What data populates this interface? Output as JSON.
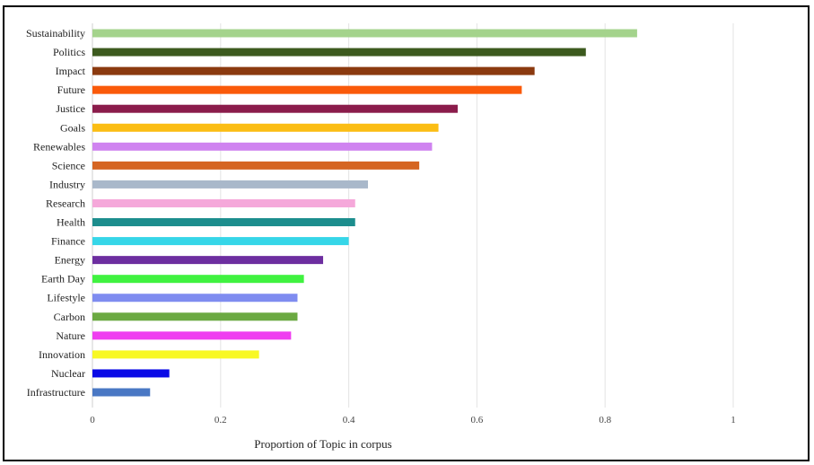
{
  "chart_data": {
    "type": "bar",
    "orientation": "horizontal",
    "title": "",
    "xlabel": "Proportion of Topic in corpus",
    "ylabel": "",
    "xlim": [
      0,
      1
    ],
    "xticks": [
      0,
      0.2,
      0.4,
      0.6,
      0.8,
      1
    ],
    "xtick_labels": [
      "0",
      "0.2",
      "0.4",
      "0.6",
      "0.8",
      "1"
    ],
    "grid": true,
    "categories": [
      "Sustainability",
      "Politics",
      "Impact",
      "Future",
      "Justice",
      "Goals",
      "Renewables",
      "Science",
      "Industry",
      "Research",
      "Health",
      "Finance",
      "Energy",
      "Earth Day",
      "Lifestyle",
      "Carbon",
      "Nature",
      "Innovation",
      "Nuclear",
      "Infrastructure"
    ],
    "values": [
      0.85,
      0.77,
      0.69,
      0.67,
      0.57,
      0.54,
      0.53,
      0.51,
      0.43,
      0.41,
      0.41,
      0.4,
      0.36,
      0.33,
      0.32,
      0.32,
      0.31,
      0.26,
      0.12,
      0.09
    ],
    "colors": [
      "#a4d38c",
      "#3c5a1e",
      "#8b3a0f",
      "#fa5a0a",
      "#8b1c4b",
      "#fbbd14",
      "#cf83f0",
      "#d56522",
      "#a9b8ca",
      "#f5a8da",
      "#1c8d8d",
      "#36d6e8",
      "#6d2ea0",
      "#40f240",
      "#7f8cf0",
      "#6ba942",
      "#ef3ef0",
      "#f8f824",
      "#0a0ae6",
      "#4a78c4"
    ]
  }
}
